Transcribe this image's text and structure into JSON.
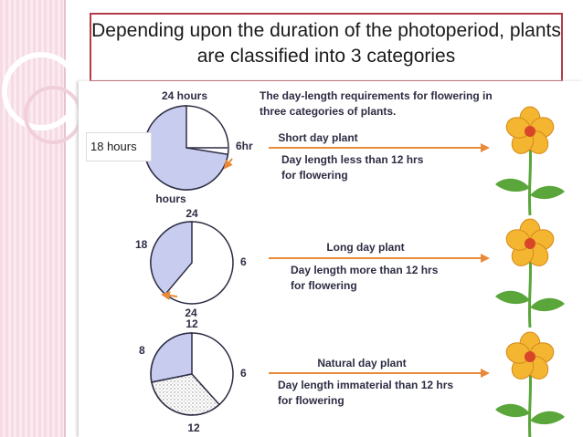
{
  "slide": {
    "title": "Depending upon the duration of the photoperiod, plants are classified into 3 categories",
    "callout_label": "18 hours"
  },
  "figure": {
    "heading_line1": "The day-length requirements for flowering in",
    "heading_line2": "three categories of plants.",
    "rows": [
      {
        "label_top": "24 hours",
        "label_right": "6hr",
        "label_bottom": "hours",
        "plant_type": "Short day plant",
        "requirement_line1": "Day length less than 12 hrs",
        "requirement_line2": "for flowering"
      },
      {
        "label_top": "24",
        "label_left": "18",
        "label_right": "6",
        "label_bottom": "24",
        "plant_type": "Long day plant",
        "requirement_line1": "Day length more than 12 hrs",
        "requirement_line2": "for flowering"
      },
      {
        "label_top": "12",
        "label_left": "8",
        "label_right": "6",
        "label_bottom": "12",
        "plant_type": "Natural day plant",
        "requirement_line1": "Day length immaterial than 12 hrs",
        "requirement_line2": "for flowering"
      }
    ]
  },
  "colors": {
    "accent_border": "#b63b4a",
    "arrow": "#e98a3a",
    "pie_fill": "#c8cdf0",
    "text_dark": "#2d2d44",
    "flower_petal": "#f4b531",
    "flower_center": "#d9452a",
    "leaf": "#5aa63a"
  }
}
